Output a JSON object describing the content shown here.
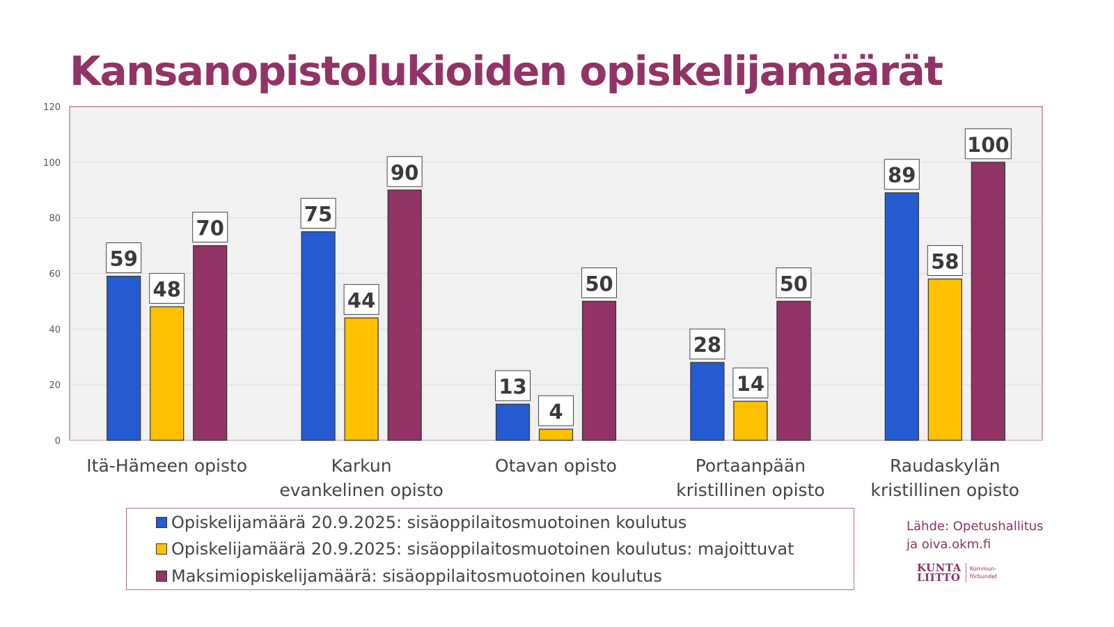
{
  "chart_data": {
    "type": "bar",
    "title": "Kansanopistolukioiden opiskelijamäärät",
    "xlabel": "",
    "ylabel": "",
    "ylim": [
      0,
      120
    ],
    "yticks": [
      "0",
      "20",
      "40",
      "60",
      "80",
      "100",
      "120"
    ],
    "grid": true,
    "legend_position": "bottom",
    "categories": [
      [
        "Itä-Hämeen opisto"
      ],
      [
        "Karkun",
        "evankelinen opisto"
      ],
      [
        "Otavan opisto"
      ],
      [
        "Portaanpään",
        "kristillinen opisto"
      ],
      [
        "Raudaskylän",
        "kristillinen opisto"
      ]
    ],
    "series": [
      {
        "name": "Opiskelijamäärä 20.9.2025: sisäoppilaitosmuotoinen koulutus",
        "color": "#255BD1",
        "values": [
          59,
          75,
          13,
          28,
          89
        ]
      },
      {
        "name": "Opiskelijamäärä 20.9.2025: sisäoppilaitosmuotoinen koulutus: majoittuvat",
        "color": "#FFC000",
        "values": [
          48,
          44,
          4,
          14,
          58
        ]
      },
      {
        "name": "Maksimiopiskelijamäärä: sisäoppilaitosmuotoinen koulutus",
        "color": "#923366",
        "values": [
          70,
          90,
          50,
          50,
          100
        ]
      }
    ]
  },
  "source": {
    "line1": "Lähde: Opetushallitus",
    "line2": "ja oiva.okm.fi"
  },
  "logo": {
    "main_line1": "KUNTA",
    "main_line2": "LIITTO",
    "sub_line1": "Kommun-",
    "sub_line2": "förbundet"
  },
  "colors": {
    "accent": "#923366",
    "plot_background": "#F1F1F1",
    "grid": "#DDDDDD"
  }
}
